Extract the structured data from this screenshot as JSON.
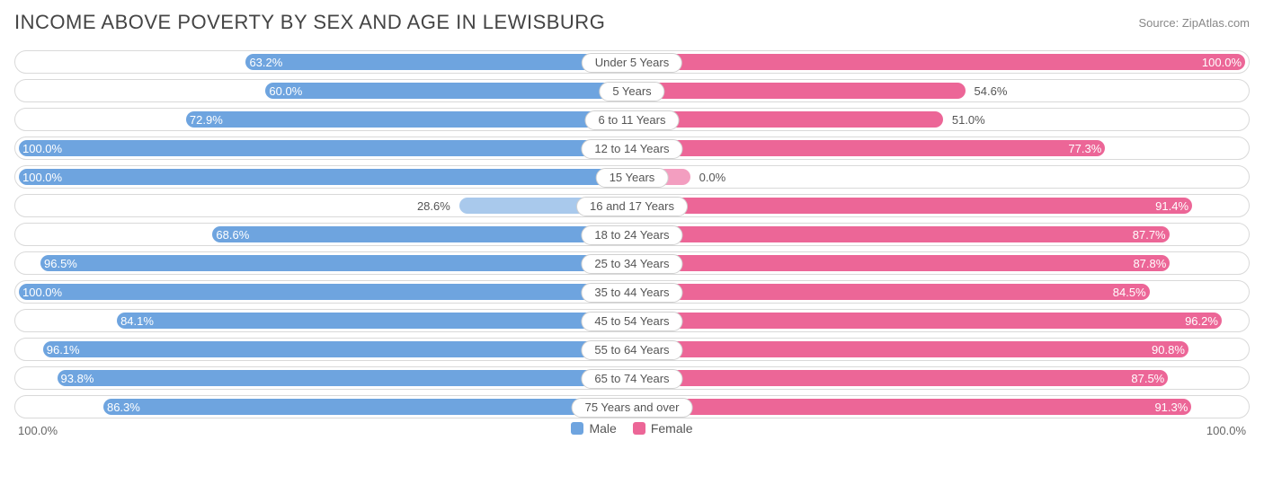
{
  "title": "INCOME ABOVE POVERTY BY SEX AND AGE IN LEWISBURG",
  "source": "Source: ZipAtlas.com",
  "colors": {
    "male_fill": "#6ea4df",
    "male_fill_light": "#a9c9ec",
    "female_fill": "#ec6697",
    "female_fill_light": "#f39ec0",
    "border": "#d9d9d9",
    "text": "#555555",
    "title_text": "#444444",
    "source_text": "#888888",
    "background": "#ffffff"
  },
  "chart": {
    "type": "diverging-bar",
    "axis_max": 100.0,
    "axis_left_label": "100.0%",
    "axis_right_label": "100.0%",
    "categories": [
      {
        "label": "Under 5 Years",
        "male": 63.2,
        "female": 100.0,
        "female_zero": false
      },
      {
        "label": "5 Years",
        "male": 60.0,
        "female": 54.6,
        "female_zero": false
      },
      {
        "label": "6 to 11 Years",
        "male": 72.9,
        "female": 51.0,
        "female_zero": false
      },
      {
        "label": "12 to 14 Years",
        "male": 100.0,
        "female": 77.3,
        "female_zero": false
      },
      {
        "label": "15 Years",
        "male": 100.0,
        "female": 0.0,
        "female_zero": true
      },
      {
        "label": "16 and 17 Years",
        "male": 28.6,
        "female": 91.4,
        "female_zero": false,
        "male_light": true
      },
      {
        "label": "18 to 24 Years",
        "male": 68.6,
        "female": 87.7,
        "female_zero": false
      },
      {
        "label": "25 to 34 Years",
        "male": 96.5,
        "female": 87.8,
        "female_zero": false
      },
      {
        "label": "35 to 44 Years",
        "male": 100.0,
        "female": 84.5,
        "female_zero": false
      },
      {
        "label": "45 to 54 Years",
        "male": 84.1,
        "female": 96.2,
        "female_zero": false
      },
      {
        "label": "55 to 64 Years",
        "male": 96.1,
        "female": 90.8,
        "female_zero": false
      },
      {
        "label": "65 to 74 Years",
        "male": 93.8,
        "female": 87.5,
        "female_zero": false
      },
      {
        "label": "75 Years and over",
        "male": 86.3,
        "female": 91.3,
        "female_zero": false
      }
    ]
  },
  "legend": {
    "male": "Male",
    "female": "Female"
  }
}
